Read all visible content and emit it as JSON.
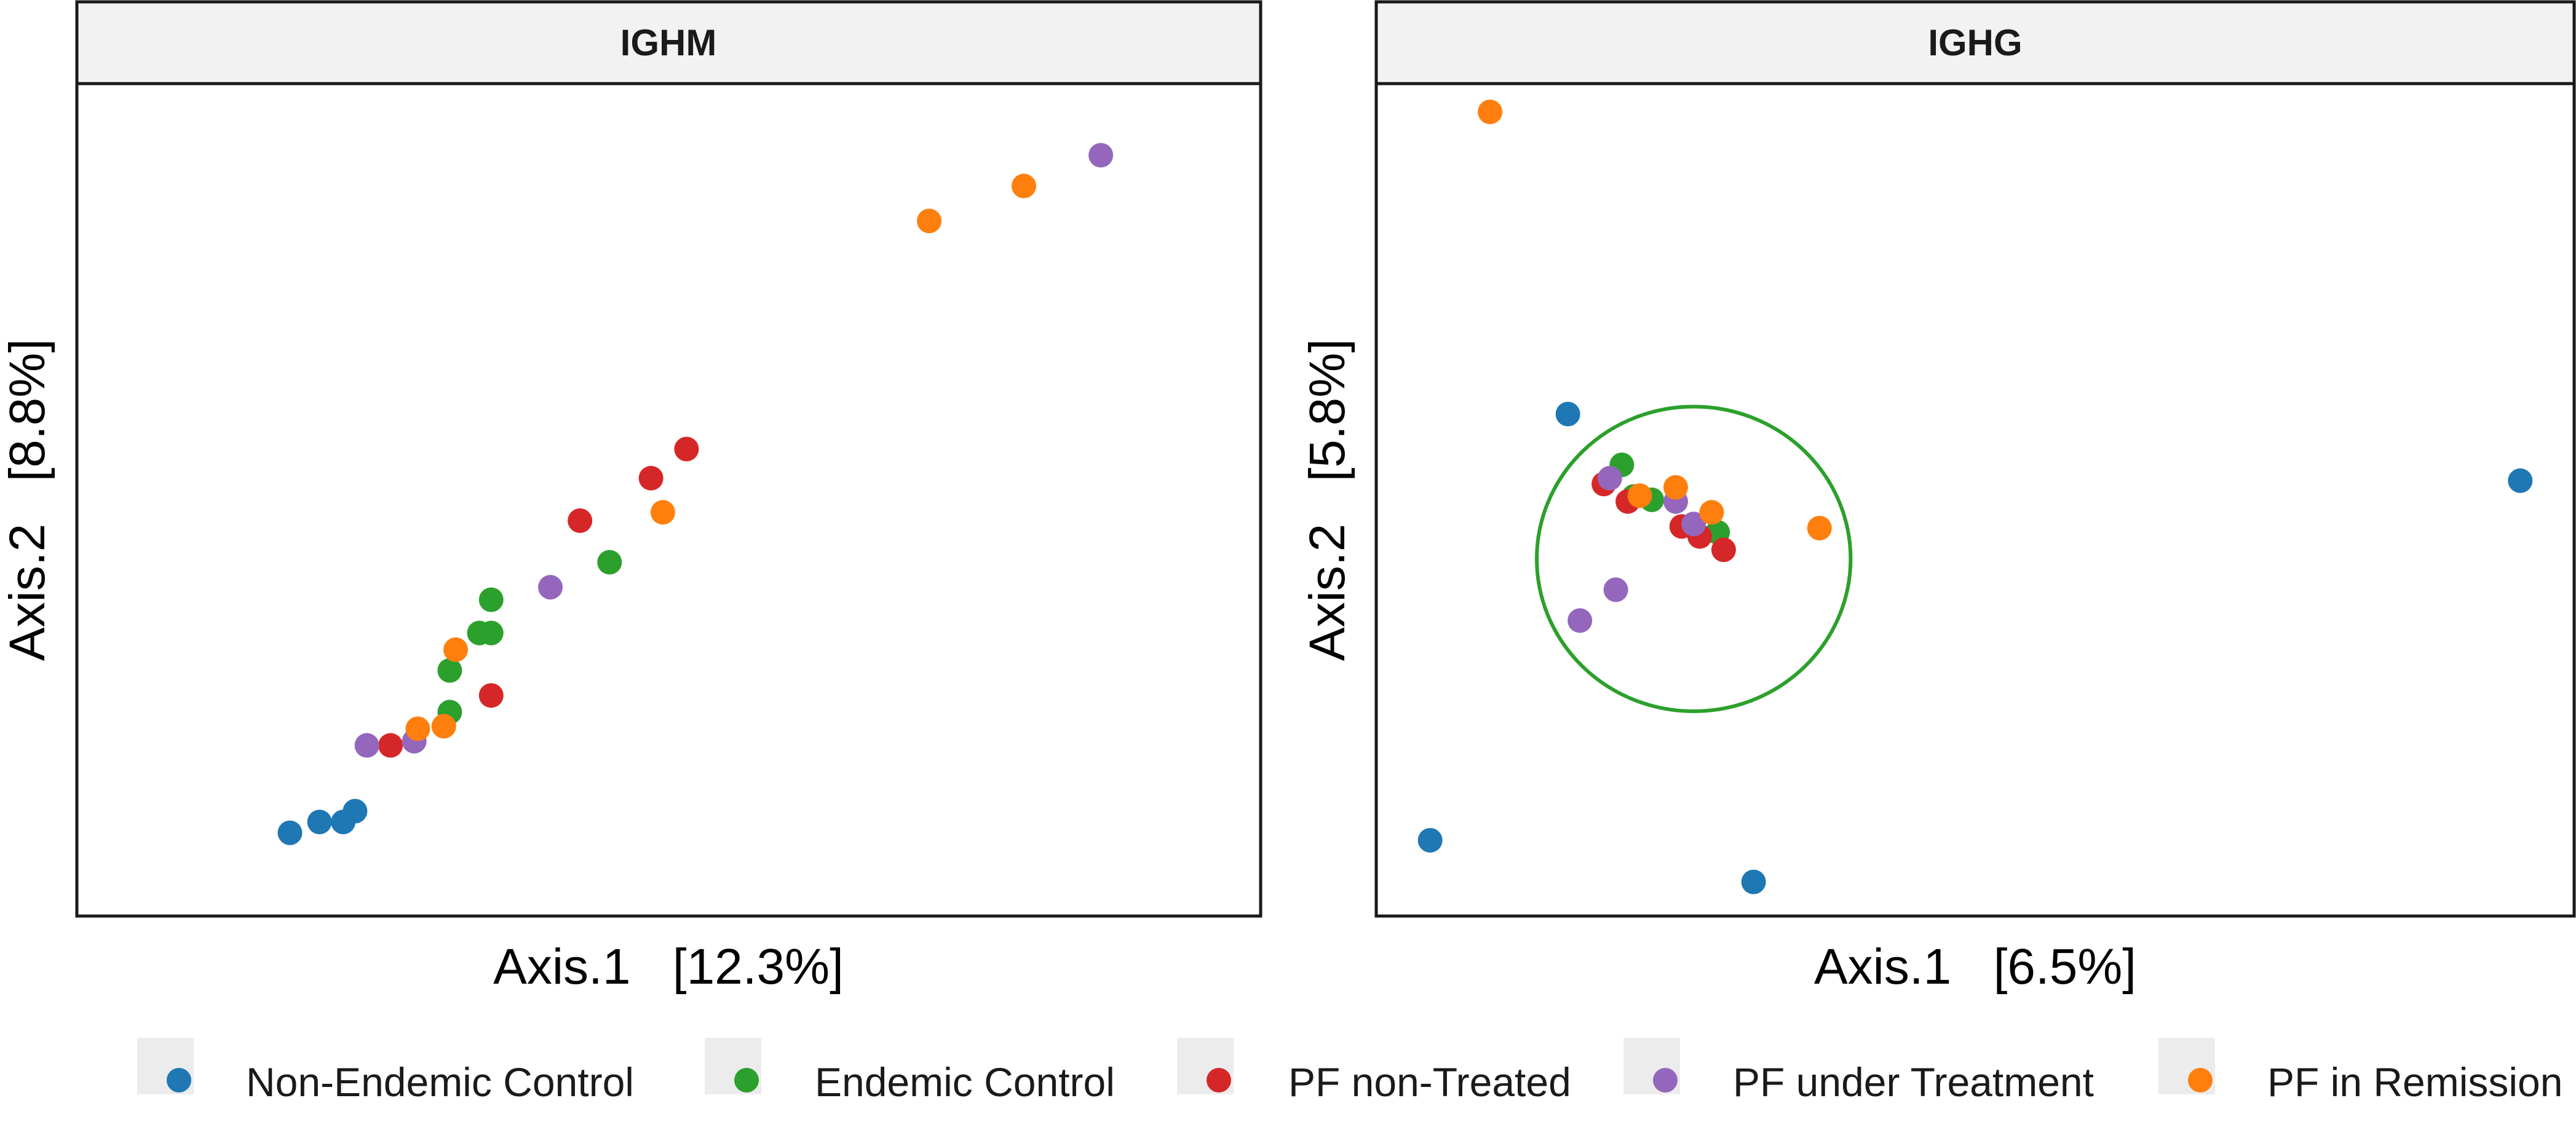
{
  "chart_data": [
    {
      "type": "scatter",
      "title": "IGHM",
      "xlabel": "Axis.1   [12.3%]",
      "ylabel": "Axis.2   [8.8%]",
      "xlim": [
        0,
        100
      ],
      "ylim": [
        0,
        100
      ],
      "grid": false,
      "series": [
        {
          "name": "Non-Endemic Control",
          "points": [
            [
              18,
              10
            ],
            [
              20.5,
              11.3
            ],
            [
              22.5,
              11.3
            ],
            [
              23.5,
              12.6
            ]
          ]
        },
        {
          "name": "Endemic Control",
          "points": [
            [
              31.5,
              24.5
            ],
            [
              31.5,
              29.5
            ],
            [
              34,
              34
            ],
            [
              35,
              34
            ],
            [
              35,
              38
            ],
            [
              45,
              42.5
            ]
          ]
        },
        {
          "name": "PF non-Treated",
          "points": [
            [
              26.5,
              20.5
            ],
            [
              35,
              26.5
            ],
            [
              42.5,
              47.5
            ],
            [
              48.5,
              52.6
            ],
            [
              51.5,
              56.1
            ]
          ]
        },
        {
          "name": "PF under Treatment",
          "points": [
            [
              24.5,
              20.5
            ],
            [
              28.5,
              21
            ],
            [
              40,
              39.5
            ]
          ]
        },
        {
          "name": "PF in Remission",
          "points": [
            [
              28.8,
              22.5
            ],
            [
              31,
              22.8
            ],
            [
              32,
              32
            ],
            [
              49.5,
              48.5
            ],
            [
              72,
              83.5
            ],
            [
              80,
              87.7
            ]
          ]
        },
        {
          "name": "PF under Treatment",
          "points": [
            [
              86.5,
              91.4
            ]
          ]
        }
      ]
    },
    {
      "type": "scatter",
      "title": "IGHG",
      "xlabel": "Axis.1   [6.5%]",
      "ylabel": "Axis.2   [5.8%]",
      "xlim": [
        0,
        100
      ],
      "ylim": [
        0,
        100
      ],
      "grid": false,
      "series": [
        {
          "name": "Non-Endemic Control",
          "points": [
            [
              4.5,
              9.1
            ],
            [
              16,
              60.3
            ],
            [
              31.5,
              4.1
            ],
            [
              95.5,
              52.3
            ]
          ]
        },
        {
          "name": "Endemic Control",
          "points": [
            [
              20.5,
              54.2
            ],
            [
              21.5,
              50.4
            ],
            [
              23,
              50
            ],
            [
              28.5,
              46.1
            ]
          ]
        },
        {
          "name": "PF non-Treated",
          "points": [
            [
              19,
              51.9
            ],
            [
              21,
              49.8
            ],
            [
              25.5,
              46.8
            ],
            [
              27,
              45.6
            ],
            [
              29,
              44
            ]
          ]
        },
        {
          "name": "PF under Treatment",
          "points": [
            [
              17,
              35.5
            ],
            [
              19.5,
              52.6
            ],
            [
              20,
              39.2
            ],
            [
              25,
              49.8
            ],
            [
              26.5,
              47.1
            ]
          ]
        },
        {
          "name": "PF in Remission",
          "points": [
            [
              9.5,
              96.6
            ],
            [
              22,
              50.5
            ],
            [
              25,
              51.5
            ],
            [
              28,
              48.5
            ],
            [
              37,
              46.6
            ]
          ]
        }
      ],
      "ellipses": [
        {
          "series": "Endemic Control",
          "cx": 26.5,
          "cy": 42.9,
          "rx": 13.1,
          "ry": 18.3
        }
      ]
    }
  ],
  "legend": {
    "items": [
      "Non-Endemic Control",
      "Endemic Control",
      "PF non-Treated",
      "PF under Treatment",
      "PF in Remission"
    ]
  },
  "colors": {
    "Non-Endemic Control": "#1f77b4",
    "Endemic Control": "#2ca02c",
    "PF non-Treated": "#d62728",
    "PF under Treatment": "#9467bd",
    "PF in Remission": "#ff7f0e"
  }
}
